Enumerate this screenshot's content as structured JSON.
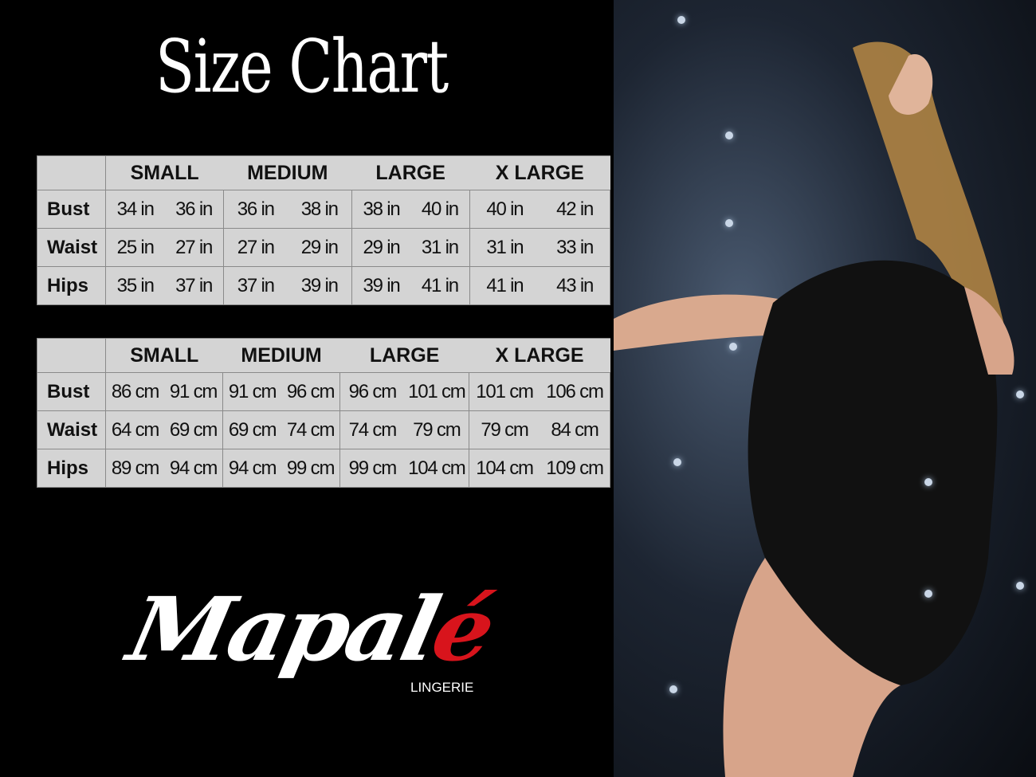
{
  "title": "Size Chart",
  "sizes": [
    "SMALL",
    "MEDIUM",
    "LARGE",
    "X LARGE"
  ],
  "tables": [
    {
      "unit": "in",
      "rows": [
        {
          "label": "Bust",
          "values": [
            "34 in",
            "36 in",
            "36 in",
            "38 in",
            "38 in",
            "40 in",
            "40 in",
            "42 in"
          ]
        },
        {
          "label": "Waist",
          "values": [
            "25 in",
            "27 in",
            "27 in",
            "29 in",
            "29 in",
            "31 in",
            "31 in",
            "33 in"
          ]
        },
        {
          "label": "Hips",
          "values": [
            "35 in",
            "37 in",
            "37 in",
            "39 in",
            "39 in",
            "41 in",
            "41 in",
            "43 in"
          ]
        }
      ]
    },
    {
      "unit": "cm",
      "rows": [
        {
          "label": "Bust",
          "values": [
            "86 cm",
            "91 cm",
            "91 cm",
            "96 cm",
            "96 cm",
            "101 cm",
            "101 cm",
            "106 cm"
          ]
        },
        {
          "label": "Waist",
          "values": [
            "64 cm",
            "69 cm",
            "69 cm",
            "74 cm",
            "74 cm",
            "79  cm",
            "79 cm",
            "84 cm"
          ]
        },
        {
          "label": "Hips",
          "values": [
            "89 cm",
            "94 cm",
            "94 cm",
            "99 cm",
            "99 cm",
            "104 cm",
            "104 cm",
            "109 cm"
          ]
        }
      ]
    }
  ],
  "logo": {
    "name_main": "Mapal",
    "name_accent": "é",
    "subtitle": "LINGERIE"
  },
  "colors": {
    "background": "#000000",
    "table_bg": "#d4d4d4",
    "logo_accent": "#d8141c"
  }
}
